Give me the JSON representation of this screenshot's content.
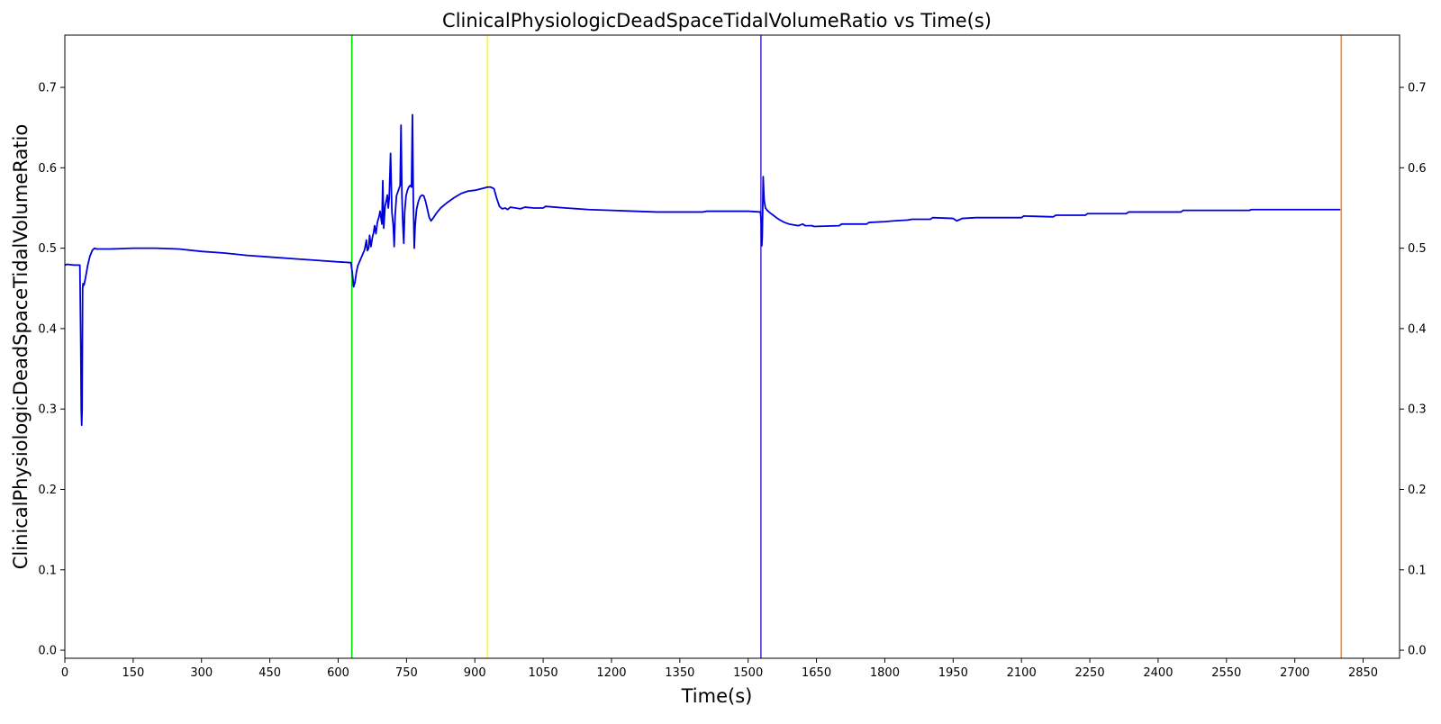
{
  "chart_data": {
    "type": "line",
    "title": "ClinicalPhysiologicDeadSpaceTidalVolumeRatio vs Time(s)",
    "xlabel": "Time(s)",
    "ylabel": "ClinicalPhysiologicDeadSpaceTidalVolumeRatio",
    "xlim": [
      0,
      2930
    ],
    "ylim": [
      -0.01,
      0.765
    ],
    "xticks": [
      0,
      150,
      300,
      450,
      600,
      750,
      900,
      1050,
      1200,
      1350,
      1500,
      1650,
      1800,
      1950,
      2100,
      2250,
      2400,
      2550,
      2700,
      2850
    ],
    "yticks": [
      0.0,
      0.1,
      0.2,
      0.3,
      0.4,
      0.5,
      0.6,
      0.7
    ],
    "ytick_labels": [
      "0.0",
      "0.1",
      "0.2",
      "0.3",
      "0.4",
      "0.5",
      "0.6",
      "0.7"
    ],
    "right_axis_mirrored": true,
    "grid": false,
    "colors": {
      "series": "#0000dd",
      "green_marker": "#00dd00",
      "yellow_marker": "#ffff00",
      "blue_marker": "#5533cc",
      "orange_marker": "#ff8833"
    },
    "vertical_lines": [
      {
        "x": 630,
        "color": "#00dd00"
      },
      {
        "x": 928,
        "color": "#ffff00"
      },
      {
        "x": 1528,
        "color": "#5533cc"
      },
      {
        "x": 2802,
        "color": "#ff8833"
      }
    ],
    "series": [
      {
        "color": "#0000dd",
        "points": [
          [
            0,
            0.479
          ],
          [
            5,
            0.48
          ],
          [
            20,
            0.479
          ],
          [
            33,
            0.479
          ],
          [
            35,
            0.38
          ],
          [
            36,
            0.3
          ],
          [
            37,
            0.28
          ],
          [
            38,
            0.3
          ],
          [
            39,
            0.45
          ],
          [
            40,
            0.456
          ],
          [
            42,
            0.454
          ],
          [
            45,
            0.462
          ],
          [
            50,
            0.478
          ],
          [
            55,
            0.49
          ],
          [
            60,
            0.497
          ],
          [
            65,
            0.5
          ],
          [
            70,
            0.499
          ],
          [
            100,
            0.499
          ],
          [
            150,
            0.5
          ],
          [
            200,
            0.5
          ],
          [
            250,
            0.499
          ],
          [
            300,
            0.496
          ],
          [
            350,
            0.494
          ],
          [
            400,
            0.491
          ],
          [
            450,
            0.489
          ],
          [
            500,
            0.487
          ],
          [
            550,
            0.485
          ],
          [
            600,
            0.483
          ],
          [
            628,
            0.482
          ],
          [
            631,
            0.47
          ],
          [
            634,
            0.452
          ],
          [
            637,
            0.458
          ],
          [
            640,
            0.47
          ],
          [
            643,
            0.478
          ],
          [
            646,
            0.482
          ],
          [
            649,
            0.486
          ],
          [
            652,
            0.49
          ],
          [
            655,
            0.494
          ],
          [
            658,
            0.498
          ],
          [
            660,
            0.504
          ],
          [
            662,
            0.51
          ],
          [
            664,
            0.497
          ],
          [
            667,
            0.5
          ],
          [
            669,
            0.516
          ],
          [
            672,
            0.502
          ],
          [
            675,
            0.513
          ],
          [
            678,
            0.52
          ],
          [
            680,
            0.528
          ],
          [
            683,
            0.518
          ],
          [
            686,
            0.532
          ],
          [
            690,
            0.54
          ],
          [
            692,
            0.546
          ],
          [
            694,
            0.538
          ],
          [
            696,
            0.53
          ],
          [
            698,
            0.584
          ],
          [
            700,
            0.525
          ],
          [
            703,
            0.552
          ],
          [
            706,
            0.56
          ],
          [
            708,
            0.566
          ],
          [
            710,
            0.55
          ],
          [
            712,
            0.562
          ],
          [
            715,
            0.618
          ],
          [
            718,
            0.545
          ],
          [
            721,
            0.528
          ],
          [
            723,
            0.502
          ],
          [
            725,
            0.54
          ],
          [
            728,
            0.565
          ],
          [
            731,
            0.57
          ],
          [
            734,
            0.575
          ],
          [
            736,
            0.578
          ],
          [
            738,
            0.653
          ],
          [
            740,
            0.565
          ],
          [
            742,
            0.53
          ],
          [
            744,
            0.506
          ],
          [
            746,
            0.545
          ],
          [
            749,
            0.565
          ],
          [
            752,
            0.572
          ],
          [
            755,
            0.576
          ],
          [
            758,
            0.578
          ],
          [
            761,
            0.576
          ],
          [
            763,
            0.666
          ],
          [
            765,
            0.56
          ],
          [
            767,
            0.5
          ],
          [
            769,
            0.528
          ],
          [
            772,
            0.548
          ],
          [
            776,
            0.558
          ],
          [
            780,
            0.564
          ],
          [
            784,
            0.566
          ],
          [
            788,
            0.565
          ],
          [
            792,
            0.558
          ],
          [
            796,
            0.548
          ],
          [
            800,
            0.538
          ],
          [
            804,
            0.534
          ],
          [
            808,
            0.537
          ],
          [
            815,
            0.543
          ],
          [
            825,
            0.55
          ],
          [
            840,
            0.557
          ],
          [
            855,
            0.563
          ],
          [
            870,
            0.568
          ],
          [
            885,
            0.571
          ],
          [
            900,
            0.572
          ],
          [
            915,
            0.574
          ],
          [
            928,
            0.576
          ],
          [
            935,
            0.576
          ],
          [
            942,
            0.574
          ],
          [
            948,
            0.562
          ],
          [
            954,
            0.552
          ],
          [
            960,
            0.549
          ],
          [
            967,
            0.55
          ],
          [
            972,
            0.548
          ],
          [
            978,
            0.551
          ],
          [
            990,
            0.55
          ],
          [
            1000,
            0.549
          ],
          [
            1010,
            0.551
          ],
          [
            1030,
            0.55
          ],
          [
            1050,
            0.55
          ],
          [
            1055,
            0.552
          ],
          [
            1100,
            0.55
          ],
          [
            1150,
            0.548
          ],
          [
            1200,
            0.547
          ],
          [
            1250,
            0.546
          ],
          [
            1300,
            0.545
          ],
          [
            1350,
            0.545
          ],
          [
            1400,
            0.545
          ],
          [
            1410,
            0.546
          ],
          [
            1450,
            0.546
          ],
          [
            1500,
            0.546
          ],
          [
            1527,
            0.545
          ],
          [
            1529,
            0.53
          ],
          [
            1530,
            0.503
          ],
          [
            1531,
            0.515
          ],
          [
            1532,
            0.55
          ],
          [
            1533,
            0.589
          ],
          [
            1535,
            0.56
          ],
          [
            1538,
            0.55
          ],
          [
            1542,
            0.547
          ],
          [
            1548,
            0.544
          ],
          [
            1555,
            0.541
          ],
          [
            1562,
            0.538
          ],
          [
            1570,
            0.535
          ],
          [
            1580,
            0.532
          ],
          [
            1590,
            0.53
          ],
          [
            1600,
            0.529
          ],
          [
            1610,
            0.528
          ],
          [
            1620,
            0.53
          ],
          [
            1625,
            0.528
          ],
          [
            1640,
            0.528
          ],
          [
            1645,
            0.527
          ],
          [
            1700,
            0.528
          ],
          [
            1705,
            0.53
          ],
          [
            1760,
            0.53
          ],
          [
            1765,
            0.532
          ],
          [
            1800,
            0.533
          ],
          [
            1820,
            0.534
          ],
          [
            1850,
            0.535
          ],
          [
            1860,
            0.536
          ],
          [
            1900,
            0.536
          ],
          [
            1905,
            0.538
          ],
          [
            1950,
            0.537
          ],
          [
            1958,
            0.534
          ],
          [
            1962,
            0.535
          ],
          [
            1970,
            0.537
          ],
          [
            2000,
            0.538
          ],
          [
            2050,
            0.538
          ],
          [
            2100,
            0.538
          ],
          [
            2105,
            0.54
          ],
          [
            2170,
            0.539
          ],
          [
            2175,
            0.541
          ],
          [
            2240,
            0.541
          ],
          [
            2245,
            0.543
          ],
          [
            2330,
            0.543
          ],
          [
            2335,
            0.545
          ],
          [
            2450,
            0.545
          ],
          [
            2455,
            0.547
          ],
          [
            2550,
            0.547
          ],
          [
            2570,
            0.547
          ],
          [
            2600,
            0.547
          ],
          [
            2605,
            0.548
          ],
          [
            2700,
            0.548
          ],
          [
            2800,
            0.548
          ]
        ]
      }
    ]
  }
}
